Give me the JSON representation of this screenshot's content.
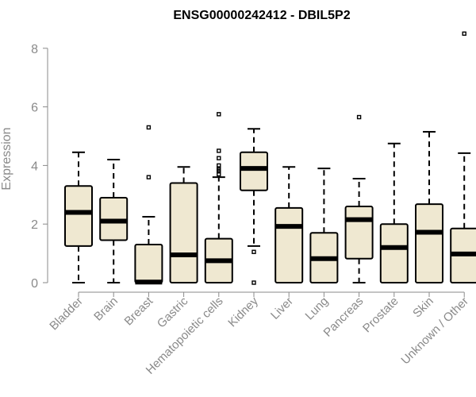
{
  "chart_data": {
    "type": "boxplot",
    "title": "ENSG00000242412 - DBIL5P2",
    "xlabel": "",
    "ylabel": "Expression",
    "ylim": [
      0,
      8.3
    ],
    "yticks": [
      0,
      2,
      4,
      6,
      8
    ],
    "grid": false,
    "categories": [
      "Bladder",
      "Brain",
      "Breast",
      "Gastric",
      "Hematopoietic cells",
      "Kidney",
      "Liver",
      "Lung",
      "Pancreas",
      "Prostate",
      "Skin",
      "Unknown / Other"
    ],
    "boxes": [
      {
        "category": "Bladder",
        "whisker_low": 0.0,
        "q1": 1.25,
        "median": 2.4,
        "q3": 3.3,
        "whisker_high": 4.45,
        "outliers": []
      },
      {
        "category": "Brain",
        "whisker_low": 0.0,
        "q1": 1.45,
        "median": 2.1,
        "q3": 2.9,
        "whisker_high": 4.2,
        "outliers": []
      },
      {
        "category": "Breast",
        "whisker_low": 0.0,
        "q1": 0.0,
        "median": 0.02,
        "q3": 1.3,
        "whisker_high": 2.25,
        "outliers": [
          3.6,
          5.3
        ]
      },
      {
        "category": "Gastric",
        "whisker_low": 0.0,
        "q1": 0.0,
        "median": 0.95,
        "q3": 3.4,
        "whisker_high": 3.95,
        "outliers": []
      },
      {
        "category": "Hematopoietic cells",
        "whisker_low": 0.0,
        "q1": 0.0,
        "median": 0.75,
        "q3": 1.5,
        "whisker_high": 3.6,
        "outliers": [
          3.7,
          3.8,
          3.85,
          3.9,
          4.0,
          4.25,
          4.5,
          5.75
        ]
      },
      {
        "category": "Kidney",
        "whisker_low": 1.25,
        "q1": 3.15,
        "median": 3.9,
        "q3": 4.45,
        "whisker_high": 5.25,
        "outliers": [
          0.0,
          1.05
        ]
      },
      {
        "category": "Liver",
        "whisker_low": 0.0,
        "q1": 0.0,
        "median": 1.92,
        "q3": 2.55,
        "whisker_high": 3.95,
        "outliers": []
      },
      {
        "category": "Lung",
        "whisker_low": 0.0,
        "q1": 0.0,
        "median": 0.82,
        "q3": 1.7,
        "whisker_high": 3.9,
        "outliers": []
      },
      {
        "category": "Pancreas",
        "whisker_low": 0.0,
        "q1": 0.82,
        "median": 2.15,
        "q3": 2.6,
        "whisker_high": 3.55,
        "outliers": [
          5.65
        ]
      },
      {
        "category": "Prostate",
        "whisker_low": 0.0,
        "q1": 0.0,
        "median": 1.2,
        "q3": 2.0,
        "whisker_high": 4.75,
        "outliers": []
      },
      {
        "category": "Skin",
        "whisker_low": 0.0,
        "q1": 0.0,
        "median": 1.72,
        "q3": 2.68,
        "whisker_high": 5.15,
        "outliers": []
      },
      {
        "category": "Unknown / Other",
        "whisker_low": 0.0,
        "q1": 0.0,
        "median": 0.98,
        "q3": 1.85,
        "whisker_high": 4.42,
        "outliers": [
          8.5
        ]
      }
    ],
    "colors": {
      "box_fill": "#efe8d1",
      "box_stroke": "#000000",
      "axis": "#8a8a8a"
    }
  }
}
